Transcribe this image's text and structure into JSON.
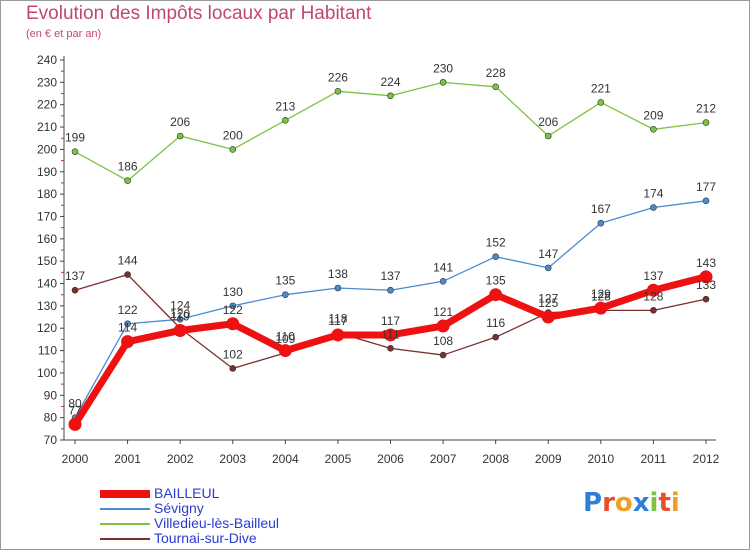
{
  "header": {
    "title": "Evolution des Impôts locaux par Habitant",
    "subtitle": "(en € et par an)"
  },
  "logo": {
    "text": "Proxiti",
    "letters": [
      "P",
      "r",
      "o",
      "x",
      "i",
      "t",
      "i"
    ],
    "colors": [
      "#2e7fd8",
      "#e8502a",
      "#f0a020",
      "#2e7fd8",
      "#7cc243",
      "#e8502a",
      "#f0a020"
    ]
  },
  "chart_data": {
    "type": "line",
    "title": "Evolution des Impôts locaux par Habitant",
    "subtitle": "(en € et par an)",
    "xlabel": "",
    "ylabel": "",
    "categories": [
      "2000",
      "2001",
      "2002",
      "2003",
      "2004",
      "2005",
      "2006",
      "2007",
      "2008",
      "2009",
      "2010",
      "2011",
      "2012"
    ],
    "ylim": [
      70,
      240
    ],
    "ytick_step": 10,
    "grid": false,
    "legend_position": "bottom-left",
    "series": [
      {
        "name": "BAILLEUL",
        "color": "#ee1111",
        "bold": true,
        "values": [
          77,
          114,
          119,
          122,
          110,
          117,
          117,
          121,
          135,
          125,
          129,
          137,
          143
        ],
        "labels": [
          "77",
          "114",
          "119",
          "122",
          "110",
          "117",
          "117",
          "121",
          "135",
          "125",
          "129",
          "137",
          "143"
        ]
      },
      {
        "name": "Sévigny",
        "color": "#4a8bd0",
        "bold": false,
        "values": [
          80,
          122,
          124,
          130,
          135,
          138,
          137,
          141,
          152,
          147,
          167,
          174,
          177
        ],
        "labels": [
          "80",
          "122",
          "124",
          "130",
          "135",
          "138",
          "137",
          "141",
          "152",
          "147",
          "167",
          "174",
          "177"
        ]
      },
      {
        "name": "Villedieu-lès-Bailleul",
        "color": "#7cc243",
        "bold": false,
        "values": [
          199,
          186,
          206,
          200,
          213,
          226,
          224,
          230,
          228,
          206,
          221,
          209,
          212
        ],
        "labels": [
          "199",
          "186",
          "206",
          "200",
          "213",
          "226",
          "224",
          "230",
          "228",
          "206",
          "221",
          "209",
          "212"
        ]
      },
      {
        "name": "Tournai-sur-Dive",
        "color": "#7a2e2e",
        "bold": false,
        "values": [
          137,
          144,
          120,
          102,
          109,
          118,
          111,
          108,
          116,
          127,
          128,
          128,
          133
        ],
        "labels": [
          "137",
          "144",
          "120",
          "102",
          "109",
          "118",
          "111",
          "108",
          "116",
          "127",
          "128",
          "128",
          "133"
        ]
      }
    ]
  }
}
